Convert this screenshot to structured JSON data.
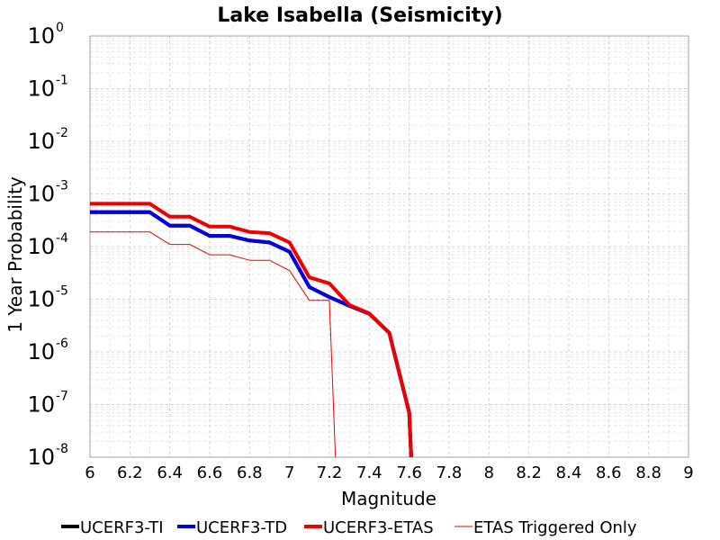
{
  "chart_data": {
    "type": "line",
    "title": "Lake Isabella (Seismicity)",
    "xlabel": "Magnitude",
    "ylabel": "1 Year Probability",
    "y_scale": "log",
    "xlim": [
      6,
      9
    ],
    "ylim": [
      1e-08,
      1
    ],
    "x_ticks": [
      "6",
      "6.2",
      "6.4",
      "6.6",
      "6.8",
      "7",
      "7.2",
      "7.4",
      "7.6",
      "7.8",
      "8",
      "8.2",
      "8.4",
      "8.6",
      "8.8",
      "9"
    ],
    "y_ticks": [
      {
        "base": "10",
        "exp": "0",
        "value": 1
      },
      {
        "base": "10",
        "exp": "-1",
        "value": 0.1
      },
      {
        "base": "10",
        "exp": "-2",
        "value": 0.01
      },
      {
        "base": "10",
        "exp": "-3",
        "value": 0.001
      },
      {
        "base": "10",
        "exp": "-4",
        "value": 0.0001
      },
      {
        "base": "10",
        "exp": "-5",
        "value": 1e-05
      },
      {
        "base": "10",
        "exp": "-6",
        "value": 1e-06
      },
      {
        "base": "10",
        "exp": "-7",
        "value": 1e-07
      },
      {
        "base": "10",
        "exp": "-8",
        "value": 1e-08
      }
    ],
    "grid": true,
    "legend_position": "bottom",
    "series": [
      {
        "name": "UCERF3-TI",
        "color": "#000000",
        "style": "thick",
        "x": [
          6.0,
          6.3,
          6.4,
          6.5,
          6.6,
          6.7,
          6.8,
          6.9,
          7.0,
          7.1,
          7.2,
          7.3,
          7.4,
          7.5,
          7.6,
          7.61
        ],
        "y": [
          0.00045,
          0.00045,
          0.00025,
          0.00025,
          0.00016,
          0.00016,
          0.00013,
          0.00012,
          8e-05,
          1.7e-05,
          1.1e-05,
          7.5e-06,
          5.3e-06,
          2.3e-06,
          7e-08,
          1e-08
        ]
      },
      {
        "name": "UCERF3-TD",
        "color": "#0000e0",
        "style": "thick",
        "x": [
          6.0,
          6.3,
          6.4,
          6.5,
          6.6,
          6.7,
          6.8,
          6.9,
          7.0,
          7.1,
          7.2,
          7.3,
          7.4,
          7.5,
          7.6,
          7.61
        ],
        "y": [
          0.00045,
          0.00045,
          0.00025,
          0.00025,
          0.00016,
          0.00016,
          0.00013,
          0.00012,
          8e-05,
          1.7e-05,
          1.1e-05,
          7.5e-06,
          5.3e-06,
          2.3e-06,
          7e-08,
          1e-08
        ]
      },
      {
        "name": "UCERF3-ETAS",
        "color": "#ee0000",
        "style": "thick",
        "x": [
          6.0,
          6.3,
          6.4,
          6.5,
          6.6,
          6.7,
          6.8,
          6.9,
          7.0,
          7.1,
          7.2,
          7.3,
          7.4,
          7.5,
          7.6,
          7.61
        ],
        "y": [
          0.00065,
          0.00065,
          0.00037,
          0.00037,
          0.00024,
          0.00024,
          0.00019,
          0.00018,
          0.00012,
          2.6e-05,
          2e-05,
          7.8e-06,
          5.4e-06,
          2.3e-06,
          7e-08,
          1e-08
        ]
      },
      {
        "name": "ETAS Triggered Only",
        "color": "#ee0000",
        "style": "thin",
        "x": [
          6.0,
          6.3,
          6.4,
          6.5,
          6.6,
          6.7,
          6.8,
          6.9,
          7.0,
          7.1,
          7.2,
          7.23
        ],
        "y": [
          0.00019,
          0.00019,
          0.00011,
          0.00011,
          7e-05,
          7e-05,
          5.5e-05,
          5.5e-05,
          3.5e-05,
          9.5e-06,
          9.5e-06,
          1e-08
        ]
      }
    ]
  }
}
